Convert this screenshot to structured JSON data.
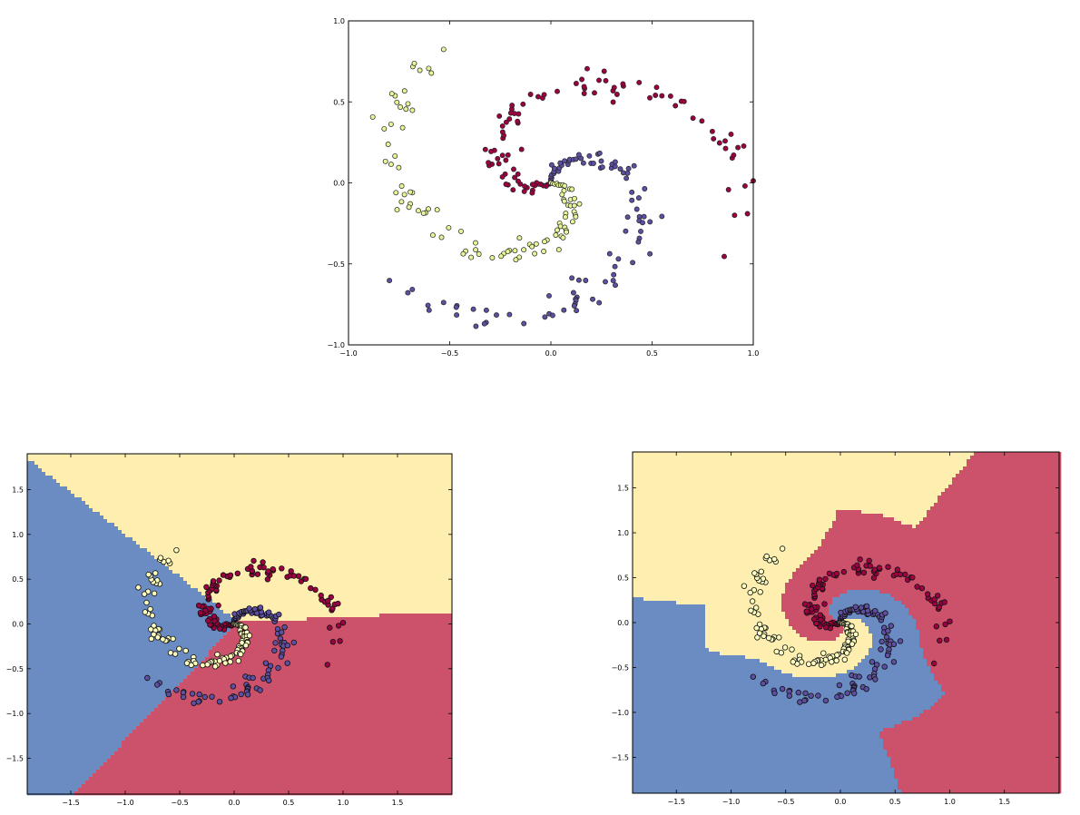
{
  "chart_data": [
    {
      "type": "scatter",
      "title": "",
      "xlabel": "",
      "ylabel": "",
      "xlim": [
        -1.0,
        1.0
      ],
      "ylim": [
        -1.0,
        1.0
      ],
      "xticks": [
        "−1.0",
        "−0.5",
        "0.0",
        "0.5",
        "1.0"
      ],
      "yticks": [
        "1.0",
        "0.5",
        "0.0",
        "−0.5",
        "−1.0"
      ],
      "grid": false,
      "series": [
        {
          "color": "#5e4fa2",
          "spiral": 0,
          "points": 100
        },
        {
          "color": "#9e0142",
          "spiral": 1,
          "points": 100
        },
        {
          "color": "#e6f598",
          "spiral": 2,
          "points": 100
        }
      ]
    },
    {
      "type": "scatter",
      "title": "",
      "xlabel": "",
      "ylabel": "",
      "xlim": [
        -1.9,
        2.0
      ],
      "ylim": [
        -1.9,
        1.9
      ],
      "xticks": [
        "−1.5",
        "−1.0",
        "−0.5",
        "0.0",
        "0.5",
        "1.0",
        "1.5"
      ],
      "yticks": [
        "1.5",
        "1.0",
        "0.5",
        "0.0",
        "−0.5",
        "−1.0",
        "−1.5"
      ],
      "decision_regions": "linear",
      "region_colors": {
        "blue": "#6a8cc2",
        "yellow": "#feeeb0",
        "red": "#cc526b"
      },
      "point_colors": [
        "#5e4fa2",
        "#9e0142",
        "#ffffbf"
      ]
    },
    {
      "type": "scatter",
      "title": "",
      "xlabel": "",
      "ylabel": "",
      "xlim": [
        -1.9,
        2.0
      ],
      "ylim": [
        -1.9,
        1.9
      ],
      "xticks": [
        "−1.5",
        "−1.0",
        "−0.5",
        "0.0",
        "0.5",
        "1.0",
        "1.5"
      ],
      "yticks": [
        "1.5",
        "1.0",
        "0.5",
        "0.0",
        "−0.5",
        "−1.0",
        "−1.5"
      ],
      "decision_regions": "neural-network",
      "region_colors": {
        "blue": "#6a8cc2",
        "yellow": "#feeeb0",
        "red": "#cc526b"
      },
      "point_colors": [
        "#5e4fa2",
        "#9e0142",
        "#ffffbf"
      ]
    }
  ]
}
